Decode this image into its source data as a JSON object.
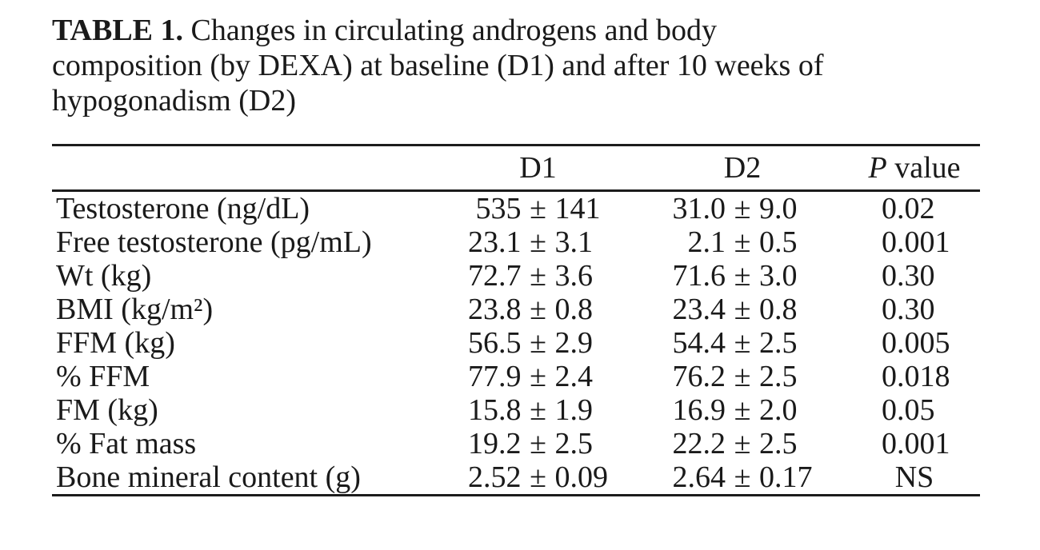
{
  "caption": {
    "label": "TABLE 1.",
    "line1_rest": " Changes in circulating androgens and body",
    "line2": "composition (by DEXA) at baseline (D1) and after 10 weeks of",
    "line3": "hypogonadism (D2)"
  },
  "table": {
    "plus_minus": "±",
    "header": {
      "d1": "D1",
      "d2": "D2",
      "p_italic": "P",
      "p_rest": " value"
    },
    "rows": [
      {
        "label": "Testosterone (ng/dL)",
        "d1": [
          "535",
          "141"
        ],
        "d2": [
          "31.0",
          "9.0"
        ],
        "p": "0.02"
      },
      {
        "label": "Free testosterone (pg/mL)",
        "d1": [
          "23.1",
          "3.1"
        ],
        "d2": [
          "2.1",
          "0.5"
        ],
        "p": "0.001"
      },
      {
        "label": "Wt (kg)",
        "d1": [
          "72.7",
          "3.6"
        ],
        "d2": [
          "71.6",
          "3.0"
        ],
        "p": "0.30"
      },
      {
        "label": "BMI (kg/m²)",
        "d1": [
          "23.8",
          "0.8"
        ],
        "d2": [
          "23.4",
          "0.8"
        ],
        "p": "0.30"
      },
      {
        "label": "FFM (kg)",
        "d1": [
          "56.5",
          "2.9"
        ],
        "d2": [
          "54.4",
          "2.5"
        ],
        "p": "0.005"
      },
      {
        "label": "% FFM",
        "d1": [
          "77.9",
          "2.4"
        ],
        "d2": [
          "76.2",
          "2.5"
        ],
        "p": "0.018"
      },
      {
        "label": "FM (kg)",
        "d1": [
          "15.8",
          "1.9"
        ],
        "d2": [
          "16.9",
          "2.0"
        ],
        "p": "0.05"
      },
      {
        "label": "% Fat mass",
        "d1": [
          "19.2",
          "2.5"
        ],
        "d2": [
          "22.2",
          "2.5"
        ],
        "p": "0.001"
      },
      {
        "label": "Bone mineral content (g)",
        "d1": [
          "2.52",
          "0.09"
        ],
        "d2": [
          "2.64",
          "0.17"
        ],
        "p": "NS"
      }
    ],
    "colors": {
      "text": "#1a1a1a",
      "rule": "#1c1c1c",
      "background": "#ffffff"
    }
  }
}
